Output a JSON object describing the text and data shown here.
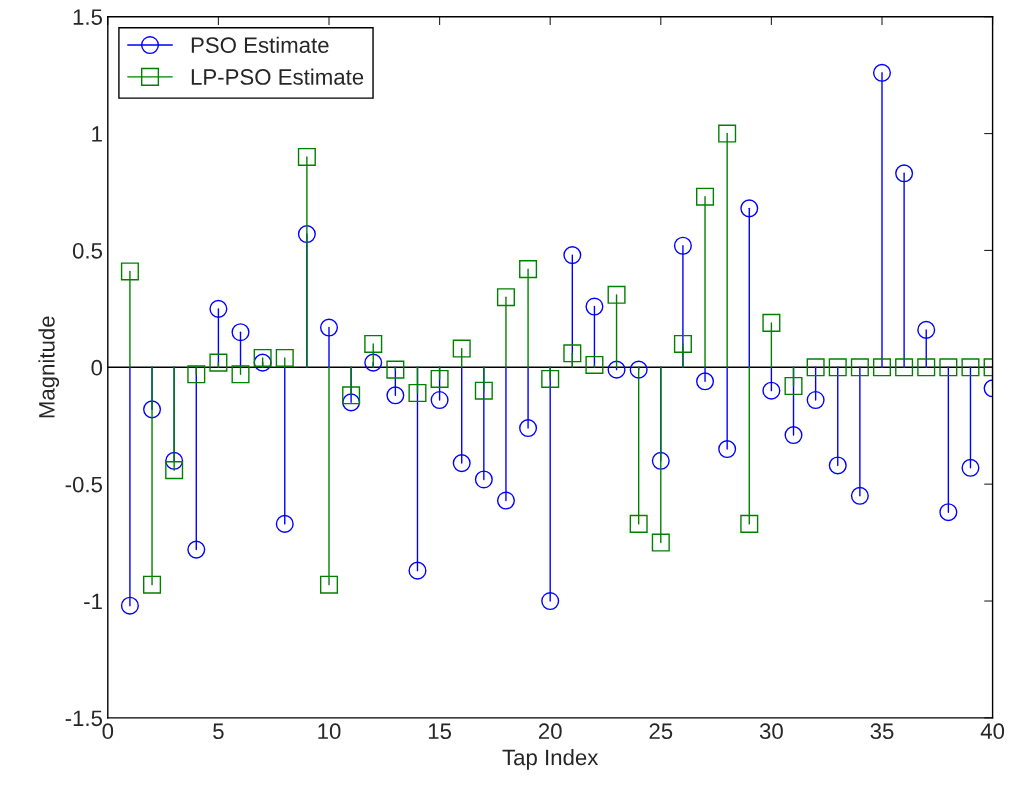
{
  "chart_data": {
    "type": "lollipop",
    "xlabel": "Tap Index",
    "ylabel": "Magnitude",
    "x": [
      1,
      2,
      3,
      4,
      5,
      6,
      7,
      8,
      9,
      10,
      11,
      12,
      13,
      14,
      15,
      16,
      17,
      18,
      19,
      20,
      21,
      22,
      23,
      24,
      25,
      26,
      27,
      28,
      29,
      30,
      31,
      32,
      33,
      34,
      35,
      36,
      37,
      38,
      39,
      40
    ],
    "series": [
      {
        "name": "PSO Estimate",
        "color": "#0000ff",
        "marker": "circle",
        "values": [
          -1.02,
          -0.18,
          -0.4,
          -0.78,
          0.25,
          0.15,
          0.02,
          -0.67,
          0.57,
          0.17,
          -0.15,
          0.02,
          -0.12,
          -0.87,
          -0.14,
          -0.41,
          -0.48,
          -0.57,
          -0.26,
          -1.0,
          0.48,
          0.26,
          -0.01,
          -0.01,
          -0.4,
          0.52,
          -0.06,
          -0.35,
          0.68,
          -0.1,
          -0.29,
          -0.14,
          -0.42,
          -0.55,
          1.26,
          0.83,
          0.16,
          -0.62,
          -0.43,
          -0.09
        ]
      },
      {
        "name": "LP-PSO Estimate",
        "color": "#008000",
        "marker": "square",
        "values": [
          0.41,
          -0.93,
          -0.44,
          -0.03,
          0.02,
          -0.03,
          0.04,
          0.04,
          0.9,
          -0.93,
          -0.12,
          0.1,
          -0.01,
          -0.11,
          -0.05,
          0.08,
          -0.1,
          0.3,
          0.42,
          -0.05,
          0.06,
          0.01,
          0.31,
          -0.67,
          -0.75,
          0.1,
          0.73,
          1.0,
          -0.67,
          0.19,
          -0.08,
          0,
          0,
          0,
          0,
          0,
          0,
          0,
          0,
          0
        ]
      }
    ],
    "xlim": [
      0,
      40
    ],
    "xticks": [
      0,
      5,
      10,
      15,
      20,
      25,
      30,
      35,
      40
    ],
    "ylim": [
      -1.5,
      1.5
    ],
    "yticks": [
      -1.5,
      -1,
      -0.5,
      0,
      0.5,
      1,
      1.5
    ],
    "ref_lines": [
      {
        "axis": "y",
        "value": 0,
        "color": "#000000"
      }
    ],
    "legend": "top left",
    "grid": false
  }
}
